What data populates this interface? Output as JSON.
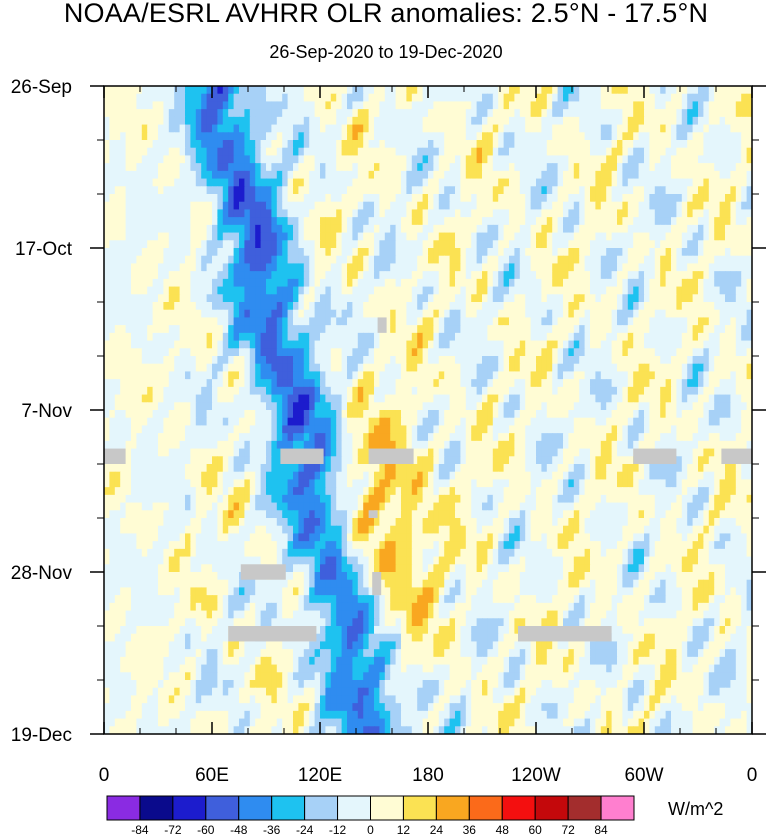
{
  "chart_data": {
    "type": "heatmap",
    "title": "NOAA/ESRL AVHRR OLR anomalies: 2.5°N - 17.5°N",
    "subtitle": "26-Sep-2020 to 19-Dec-2020",
    "x_ticks": [
      "0",
      "60E",
      "120E",
      "180",
      "120W",
      "60W",
      "0"
    ],
    "x_range_deg_east": [
      0,
      360
    ],
    "y_ticks": [
      "26-Sep",
      "17-Oct",
      "7-Nov",
      "28-Nov",
      "19-Dec"
    ],
    "y_range_days": [
      0,
      84
    ],
    "colorbar": {
      "levels": [
        -84,
        -72,
        -60,
        -48,
        -36,
        -24,
        -12,
        0,
        12,
        24,
        36,
        48,
        60,
        72,
        84
      ],
      "colors": [
        "#8a2be2",
        "#0a0a8c",
        "#1c1ccd",
        "#3f5fdc",
        "#2f8cf0",
        "#1ec2f0",
        "#a7d1f7",
        "#e4f6fc",
        "#fffcd4",
        "#fbe253",
        "#f9a720",
        "#fb6a1a",
        "#f40f0f",
        "#c4080b",
        "#a32d2d",
        "#ff7fcf"
      ],
      "units": "W/m^2"
    },
    "features": [
      {
        "label": "strong negative band",
        "lon_start": 60,
        "lon_end": 150,
        "days": "0-84",
        "min_value": -84
      },
      {
        "label": "positive anomaly region",
        "lon_start": 130,
        "lon_end": 200,
        "days": "45-84",
        "max_value": 48
      },
      {
        "label": "variable anomalies",
        "lon_start": 180,
        "lon_end": 360,
        "days": "0-84",
        "range": [
          -48,
          48
        ]
      }
    ],
    "missing_data": [
      {
        "lon": [
          0,
          12
        ],
        "day": [
          47,
          49
        ]
      },
      {
        "lon": [
          98,
          122
        ],
        "day": [
          47,
          49
        ]
      },
      {
        "lon": [
          147,
          172
        ],
        "day": [
          47,
          49
        ]
      },
      {
        "lon": [
          294,
          318
        ],
        "day": [
          47,
          49
        ]
      },
      {
        "lon": [
          343,
          360
        ],
        "day": [
          47,
          49
        ]
      },
      {
        "lon": [
          147,
          152
        ],
        "day": [
          55,
          56
        ]
      },
      {
        "lon": [
          76,
          101
        ],
        "day": [
          62,
          64
        ]
      },
      {
        "lon": [
          149,
          154
        ],
        "day": [
          63,
          66
        ]
      },
      {
        "lon": [
          69,
          118
        ],
        "day": [
          70,
          72
        ]
      },
      {
        "lon": [
          230,
          282
        ],
        "day": [
          70,
          72
        ]
      },
      {
        "lon": [
          152,
          157
        ],
        "day": [
          30,
          32
        ]
      }
    ]
  }
}
